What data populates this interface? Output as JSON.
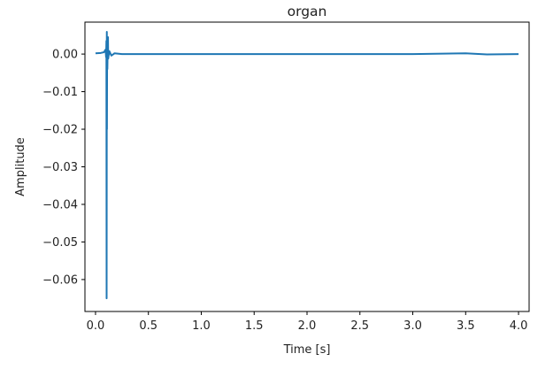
{
  "chart_data": {
    "type": "line",
    "title": "organ",
    "xlabel": "Time [s]",
    "ylabel": "Amplitude",
    "xlim": [
      -0.1,
      4.1
    ],
    "ylim": [
      -0.0685,
      0.0085
    ],
    "x_ticks": [
      0.0,
      0.5,
      1.0,
      1.5,
      2.0,
      2.5,
      3.0,
      3.5,
      4.0
    ],
    "x_tick_labels": [
      "0.0",
      "0.5",
      "1.0",
      "1.5",
      "2.0",
      "2.5",
      "3.0",
      "3.5",
      "4.0"
    ],
    "y_ticks": [
      0.0,
      -0.01,
      -0.02,
      -0.03,
      -0.04,
      -0.05,
      -0.06
    ],
    "y_tick_labels": [
      "0.00",
      "−0.01",
      "−0.02",
      "−0.03",
      "−0.04",
      "−0.05",
      "−0.06"
    ],
    "grid": false,
    "line_color": "#1f77b4",
    "series": [
      {
        "x": [
          0.0,
          0.05,
          0.08,
          0.095,
          0.1,
          0.103,
          0.105,
          0.107,
          0.108,
          0.11,
          0.112,
          0.115,
          0.118,
          0.12,
          0.13,
          0.15,
          0.18,
          0.25,
          0.5,
          1.0,
          1.5,
          2.0,
          2.5,
          3.0,
          3.5,
          3.7,
          4.0
        ],
        "y": [
          0.0002,
          0.0003,
          0.0005,
          0.0012,
          -0.0008,
          0.0035,
          -0.065,
          0.0059,
          -0.02,
          0.003,
          -0.004,
          0.0015,
          0.0045,
          -0.0012,
          0.0008,
          -0.0004,
          0.0002,
          0.0,
          0.0,
          0.0,
          0.0,
          0.0,
          0.0,
          0.0,
          0.0002,
          -0.0001,
          0.0
        ]
      }
    ]
  }
}
